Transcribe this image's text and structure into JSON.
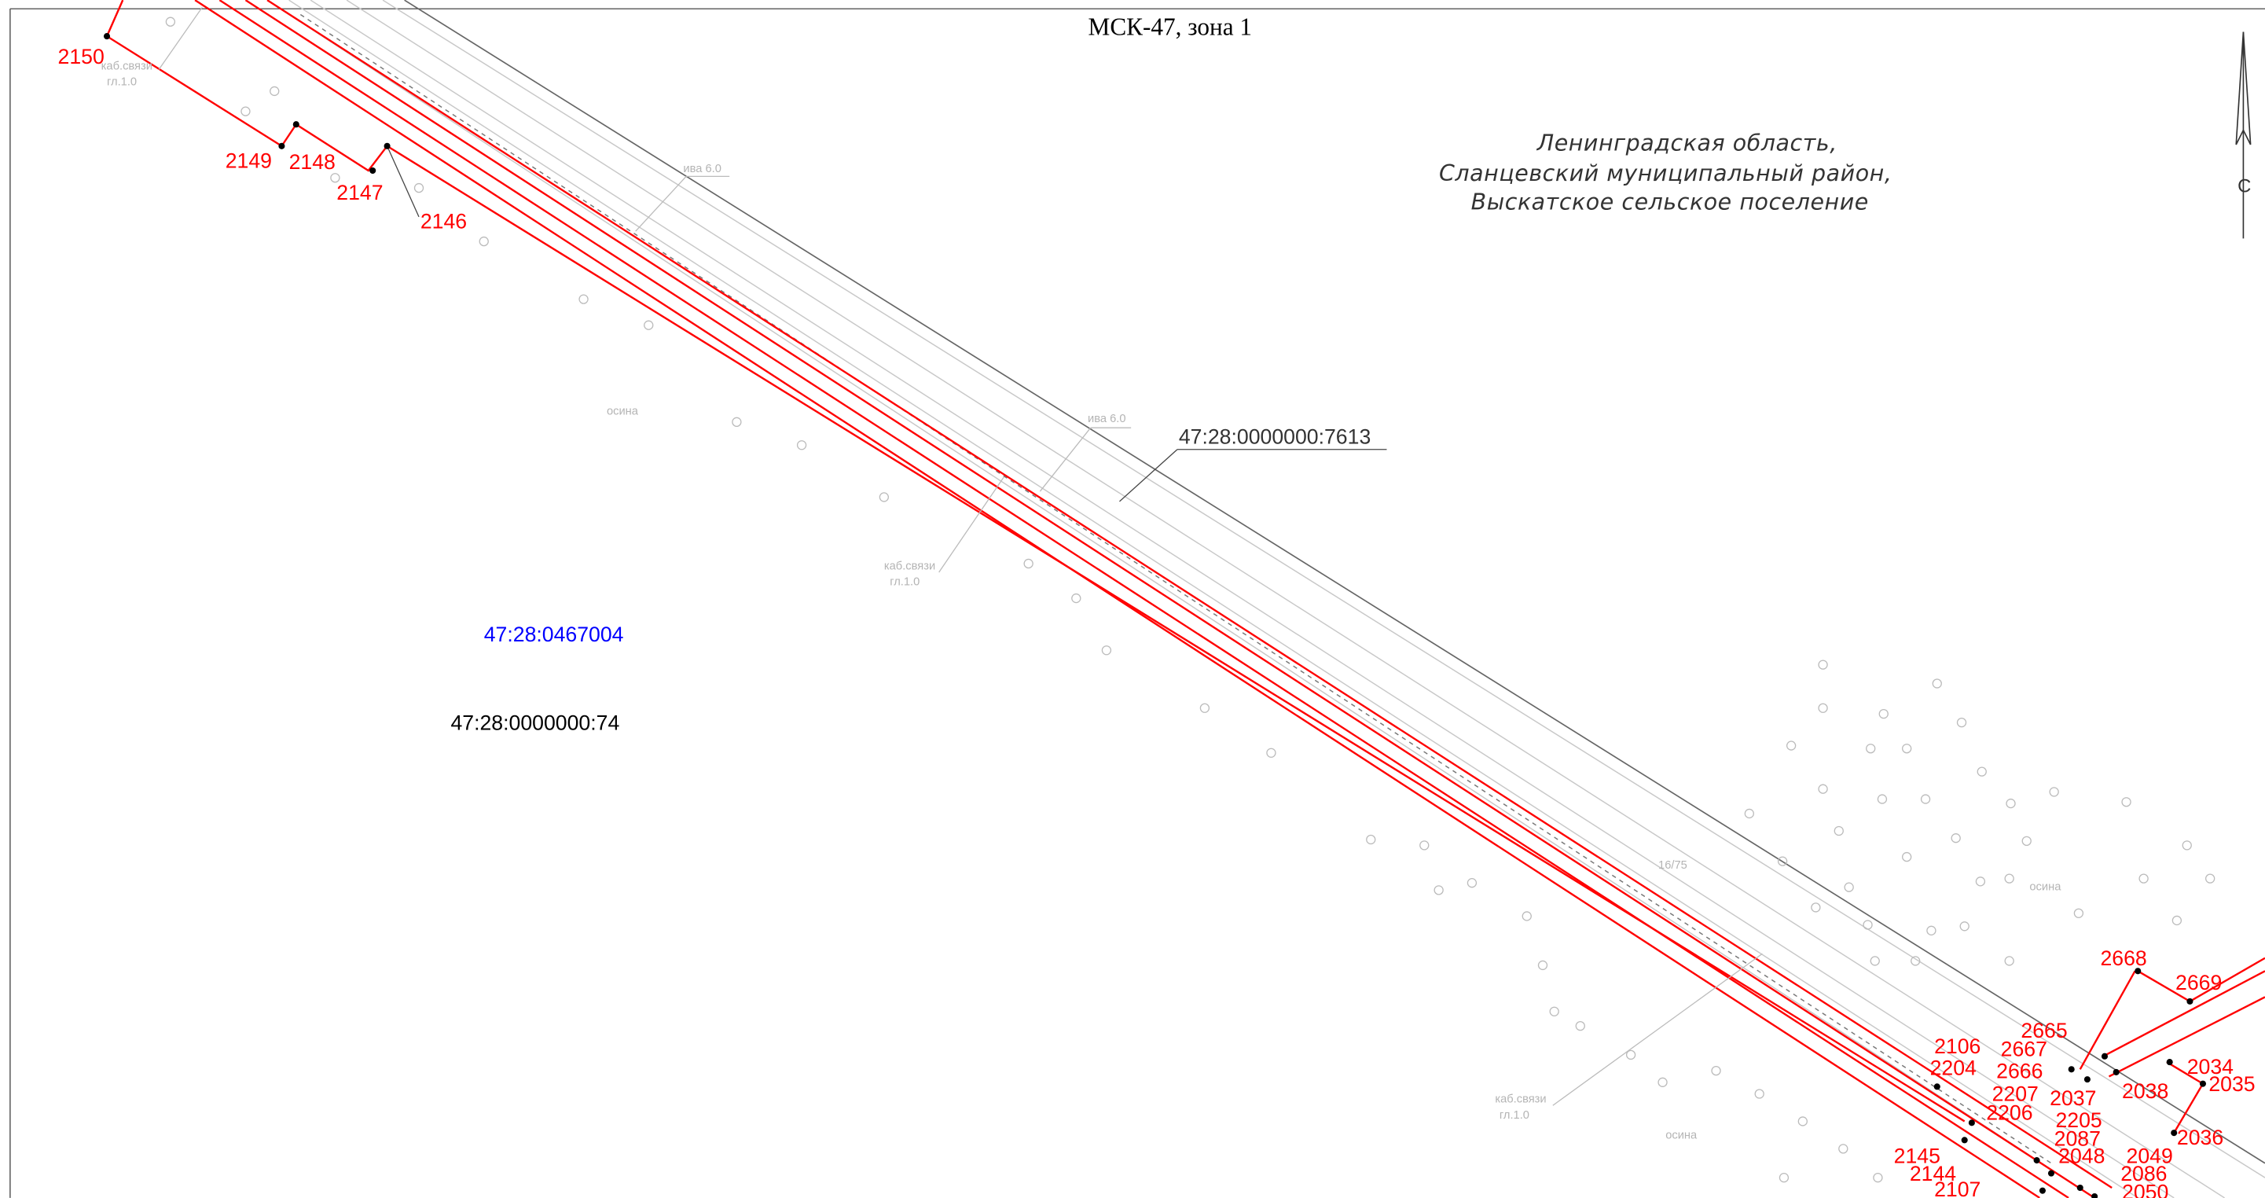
{
  "header": {
    "title": "МСК-47, зона 1"
  },
  "region": [
    "Ленинградская область,",
    "Сланцевский муниципальный район,",
    "Выскатское сельское поселение"
  ],
  "parcels": [
    "47:28:0000000:7613",
    "47:28:0467004",
    "47:28:0000000:74"
  ],
  "north": "С",
  "points": [
    "2150",
    "2149",
    "2148",
    "2147",
    "2146",
    "2668",
    "2669",
    "2665",
    "2667",
    "2106",
    "2666",
    "2204",
    "2038",
    "2034",
    "2035",
    "2207",
    "2037",
    "2206",
    "2205",
    "2087",
    "2036",
    "2145",
    "2048",
    "2049",
    "2144",
    "2086",
    "2107",
    "2050"
  ],
  "annotations": [
    "ива 6.0",
    "ива 6.0",
    "каб.связи",
    "гл.1.0",
    "каб.связи",
    "гл.1.0",
    "каб.связи",
    "гл.1.0",
    "осина",
    "осина",
    "осина",
    "16/75"
  ]
}
